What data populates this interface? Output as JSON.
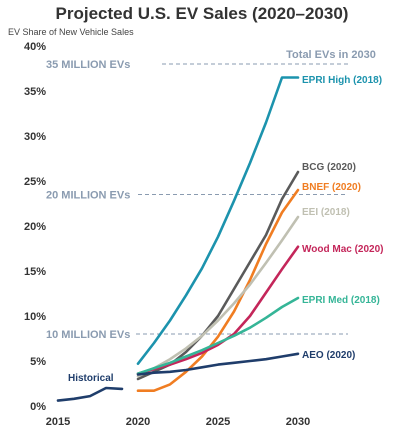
{
  "chart_data": {
    "type": "line",
    "title": "Projected U.S. EV Sales (2020–2030)",
    "ylabel": "EV Share of New Vehicle Sales",
    "xlabel": "",
    "xlim": [
      2015,
      2030
    ],
    "ylim": [
      0,
      40
    ],
    "x_ticks": [
      "2015",
      "2020",
      "2025",
      "2030"
    ],
    "y_ticks": [
      "0%",
      "5%",
      "10%",
      "15%",
      "20%",
      "25%",
      "30%",
      "35%",
      "40%"
    ],
    "total_label": "Total EVs in 2030",
    "reference_lines": [
      {
        "label": "35 MILLION EVs",
        "y": 38
      },
      {
        "label": "20 MILLION EVs",
        "y": 23.5
      },
      {
        "label": "10 MILLION EVs",
        "y": 8
      }
    ],
    "series": [
      {
        "name": "Historical",
        "color": "#1f3d6b",
        "points": [
          [
            2015,
            0.6
          ],
          [
            2016,
            0.8
          ],
          [
            2017,
            1.1
          ],
          [
            2018,
            2.0
          ],
          [
            2019,
            1.9
          ]
        ]
      },
      {
        "name": "EPRI High (2018)",
        "color": "#1c93ad",
        "points": [
          [
            2020,
            4.7
          ],
          [
            2021,
            7
          ],
          [
            2022,
            9.5
          ],
          [
            2023,
            12.3
          ],
          [
            2024,
            15.3
          ],
          [
            2025,
            18.8
          ],
          [
            2026,
            22.8
          ],
          [
            2027,
            27
          ],
          [
            2028,
            31.5
          ],
          [
            2029,
            36.5
          ],
          [
            2030,
            36.5
          ]
        ]
      },
      {
        "name": "BCG (2020)",
        "color": "#5a5a5a",
        "points": [
          [
            2020,
            3
          ],
          [
            2021,
            3.8
          ],
          [
            2022,
            4.6
          ],
          [
            2023,
            6
          ],
          [
            2024,
            7.8
          ],
          [
            2025,
            10
          ],
          [
            2026,
            13
          ],
          [
            2027,
            16
          ],
          [
            2028,
            19
          ],
          [
            2029,
            23
          ],
          [
            2030,
            26
          ]
        ]
      },
      {
        "name": "BNEF (2020)",
        "color": "#f07d22",
        "points": [
          [
            2020,
            1.7
          ],
          [
            2021,
            1.7
          ],
          [
            2022,
            2.4
          ],
          [
            2023,
            3.8
          ],
          [
            2024,
            5.5
          ],
          [
            2025,
            7.7
          ],
          [
            2026,
            10.5
          ],
          [
            2027,
            14
          ],
          [
            2028,
            18
          ],
          [
            2029,
            21.5
          ],
          [
            2030,
            24
          ]
        ]
      },
      {
        "name": "EEI (2018)",
        "color": "#c0c0b2",
        "points": [
          [
            2020,
            3.3
          ],
          [
            2021,
            4.2
          ],
          [
            2022,
            5.2
          ],
          [
            2023,
            6.4
          ],
          [
            2024,
            7.8
          ],
          [
            2025,
            9.5
          ],
          [
            2026,
            11.4
          ],
          [
            2027,
            13.5
          ],
          [
            2028,
            15.9
          ],
          [
            2029,
            18.4
          ],
          [
            2030,
            21
          ]
        ]
      },
      {
        "name": "Wood Mac (2020)",
        "color": "#c4265a",
        "points": [
          [
            2020,
            3.6
          ],
          [
            2021,
            4.1
          ],
          [
            2022,
            4.6
          ],
          [
            2023,
            5.2
          ],
          [
            2024,
            5.9
          ],
          [
            2025,
            6.8
          ],
          [
            2026,
            8
          ],
          [
            2027,
            10
          ],
          [
            2028,
            12.6
          ],
          [
            2029,
            15.2
          ],
          [
            2030,
            17.7
          ]
        ]
      },
      {
        "name": "EPRI Med (2018)",
        "color": "#35b597",
        "points": [
          [
            2020,
            3.6
          ],
          [
            2021,
            4.2
          ],
          [
            2022,
            4.8
          ],
          [
            2023,
            5.5
          ],
          [
            2024,
            6.2
          ],
          [
            2025,
            7
          ],
          [
            2026,
            7.8
          ],
          [
            2027,
            8.7
          ],
          [
            2028,
            9.8
          ],
          [
            2029,
            11
          ],
          [
            2030,
            12
          ]
        ]
      },
      {
        "name": "AEO (2020)",
        "color": "#1f3d6b",
        "points": [
          [
            2020,
            3.5
          ],
          [
            2021,
            3.7
          ],
          [
            2022,
            3.8
          ],
          [
            2023,
            4.0
          ],
          [
            2024,
            4.3
          ],
          [
            2025,
            4.6
          ],
          [
            2026,
            4.8
          ],
          [
            2027,
            5.0
          ],
          [
            2028,
            5.2
          ],
          [
            2029,
            5.5
          ],
          [
            2030,
            5.8
          ]
        ]
      }
    ]
  }
}
